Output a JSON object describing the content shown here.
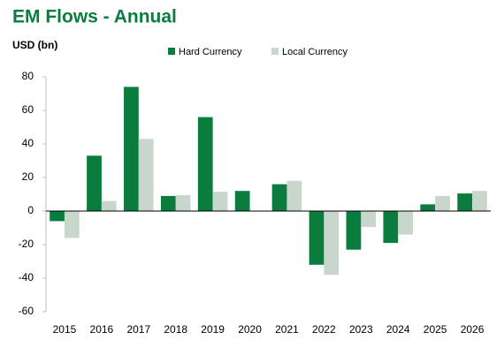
{
  "chart_data": {
    "type": "bar",
    "title": "EM Flows - Annual",
    "y_label": "USD (bn)",
    "categories": [
      "2015",
      "2016",
      "2017",
      "2018",
      "2019",
      "2020",
      "2021",
      "2022",
      "2023",
      "2024",
      "2025",
      "2026"
    ],
    "series": [
      {
        "name": "Hard Currency",
        "color": "#0a7c3e",
        "values": [
          -6,
          33,
          74,
          9,
          56,
          12,
          16,
          -32,
          -23,
          -19,
          4,
          10.5
        ]
      },
      {
        "name": "Local Currency",
        "color": "#c8d6cc",
        "values": [
          -16,
          6,
          43,
          9.5,
          11.5,
          null,
          18,
          -38,
          -9.5,
          -14,
          9,
          12
        ]
      }
    ],
    "ylim": [
      -60,
      80
    ],
    "yticks": [
      -60,
      -40,
      -20,
      0,
      20,
      40,
      60,
      80
    ],
    "legend": "top"
  }
}
